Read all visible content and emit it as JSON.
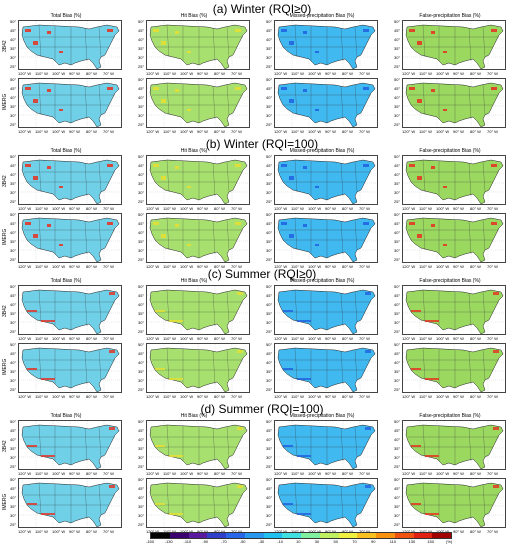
{
  "sections": [
    {
      "title": "(a) Winter (RQI≥0)"
    },
    {
      "title": "(b) Winter (RQI=100)"
    },
    {
      "title": "(c) Summer (RQI≥0)"
    },
    {
      "title": "(d) Summer (RQI=100)"
    }
  ],
  "columns": [
    "Total Bias (%)",
    "Hit Bias (%)",
    "Missed-precipitation Bias (%)",
    "False-precipitation Bias (%)"
  ],
  "rows": [
    "3B42",
    "IMERG"
  ],
  "lat_labels": [
    "50° N",
    "45° N",
    "40° N",
    "35° N",
    "30° N",
    "25° N"
  ],
  "lon_labels": [
    "120° W",
    "110° W",
    "100° W",
    "90° W",
    "80° W",
    "70° W"
  ],
  "colorbar": {
    "ticks": [
      "-150",
      "-130",
      "-110",
      "-90",
      "-70",
      "-50",
      "-30",
      "-10",
      "10",
      "30",
      "50",
      "70",
      "90",
      "110",
      "130",
      "150",
      "(%)"
    ],
    "colors": [
      "#000000",
      "#3a0070",
      "#5a1aa0",
      "#3040c8",
      "#2868e8",
      "#2898f0",
      "#20c0f0",
      "#40e0e0",
      "#80f0a0",
      "#c0f060",
      "#f0f040",
      "#f8c020",
      "#f89010",
      "#f05010",
      "#e02010",
      "#a00000"
    ]
  },
  "panel_styles": {
    "base": [
      "#6fd0e8",
      "#a8e070",
      "#40b8f0",
      "#9ad860"
    ],
    "accent": [
      "#e83020",
      "#e8e030",
      "#2060e0",
      "#e83020"
    ]
  }
}
